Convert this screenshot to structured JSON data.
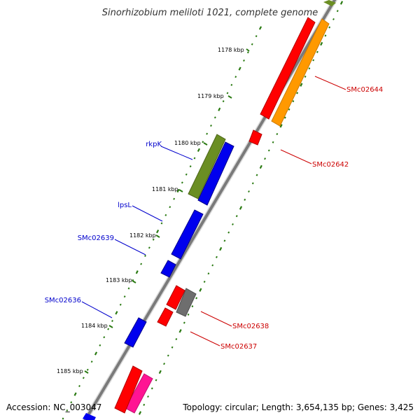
{
  "title": "Sinorhizobium meliloti 1021, complete genome",
  "footer": {
    "accession": "Accession: NC_003047",
    "topology": "Topology: circular; Length: 3,654,135 bp; Genes: 3,425"
  },
  "colors": {
    "backbone": "#8c8c8c",
    "tick_major": "#2a7a12",
    "tick_minor": "#2a7a12",
    "label_left": "#0000cc",
    "label_right": "#cc0000",
    "red": "#ff0000",
    "orange": "#ff9900",
    "olive": "#6b8e23",
    "blue": "#0000ee",
    "gray": "#6e6e6e",
    "pink": "#ff1493"
  },
  "ticks": [
    {
      "label": "1178 kbp"
    },
    {
      "label": "1179 kbp"
    },
    {
      "label": "1180 kbp"
    },
    {
      "label": "1181 kbp"
    },
    {
      "label": "1182 kbp"
    },
    {
      "label": "1183 kbp"
    },
    {
      "label": "1184 kbp"
    },
    {
      "label": "1185 kbp"
    }
  ],
  "gene_labels": [
    {
      "text": "rkpK",
      "side": "left"
    },
    {
      "text": "lpsL",
      "side": "left"
    },
    {
      "text": "SMc02639",
      "side": "left"
    },
    {
      "text": "SMc02636",
      "side": "left"
    },
    {
      "text": "SMc02644",
      "side": "right"
    },
    {
      "text": "SMc02642",
      "side": "right"
    },
    {
      "text": "SMc02638",
      "side": "right"
    },
    {
      "text": "SMc02637",
      "side": "right"
    }
  ]
}
